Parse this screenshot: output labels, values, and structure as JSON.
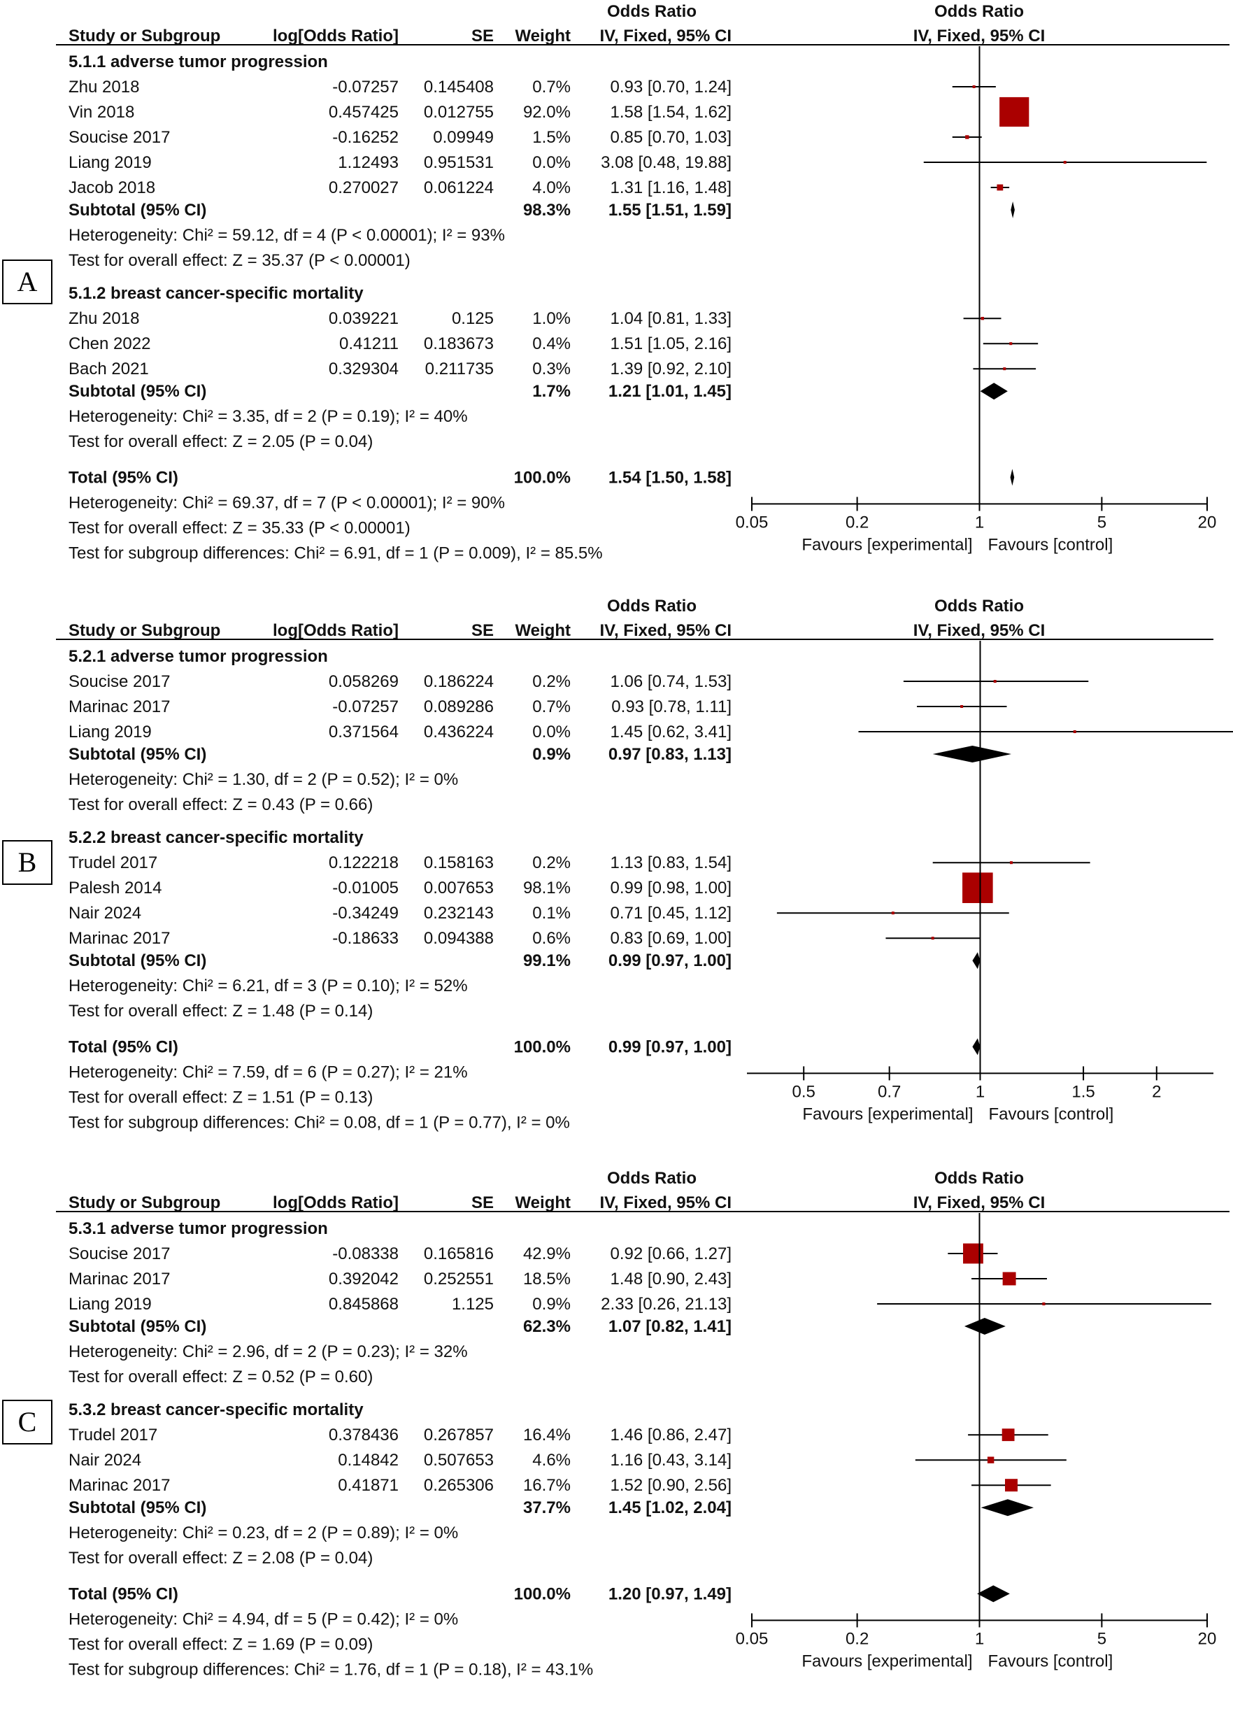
{
  "headers": {
    "odds_ratio": "Odds Ratio",
    "study": "Study or Subgroup",
    "logor": "log[Odds Ratio]",
    "se": "SE",
    "weight": "Weight",
    "method": "IV, Fixed, 95% CI"
  },
  "colors": {
    "square": "#aa0000",
    "diamond": "#000000",
    "line": "#000000"
  },
  "chart_data": [
    {
      "type": "forest",
      "panel": "A",
      "axis": {
        "scale": "log",
        "ticks": [
          "0.05",
          "0.2",
          "1",
          "5",
          "20"
        ],
        "tick_values": [
          0.05,
          0.2,
          1,
          5,
          20
        ],
        "xlim": [
          0.05,
          20
        ],
        "left_label": "Favours [experimental]",
        "right_label": "Favours [control]"
      },
      "subgroups": [
        {
          "title": "5.1.1 adverse tumor progression",
          "studies": [
            {
              "name": "Zhu 2018",
              "logor": "-0.07257",
              "se": "0.145408",
              "weight": "0.7%",
              "ci_text": "0.93 [0.70, 1.24]",
              "or": 0.93,
              "lo": 0.7,
              "hi": 1.24,
              "w": 0.7
            },
            {
              "name": "Vin 2018",
              "logor": "0.457425",
              "se": "0.012755",
              "weight": "92.0%",
              "ci_text": "1.58 [1.54, 1.62]",
              "or": 1.58,
              "lo": 1.54,
              "hi": 1.62,
              "w": 92.0
            },
            {
              "name": "Soucise 2017",
              "logor": "-0.16252",
              "se": "0.09949",
              "weight": "1.5%",
              "ci_text": "0.85 [0.70, 1.03]",
              "or": 0.85,
              "lo": 0.7,
              "hi": 1.03,
              "w": 1.5
            },
            {
              "name": "Liang 2019",
              "logor": "1.12493",
              "se": "0.951531",
              "weight": "0.0%",
              "ci_text": "3.08 [0.48, 19.88]",
              "or": 3.08,
              "lo": 0.48,
              "hi": 19.88,
              "w": 0.0
            },
            {
              "name": "Jacob 2018",
              "logor": "0.270027",
              "se": "0.061224",
              "weight": "4.0%",
              "ci_text": "1.31 [1.16, 1.48]",
              "or": 1.31,
              "lo": 1.16,
              "hi": 1.48,
              "w": 4.0
            }
          ],
          "subtotal": {
            "label": "Subtotal (95% CI)",
            "weight": "98.3%",
            "ci_text": "1.55 [1.51, 1.59]",
            "or": 1.55,
            "lo": 1.51,
            "hi": 1.59
          },
          "heterogeneity": "Heterogeneity: Chi² = 59.12, df = 4 (P < 0.00001); I² = 93%",
          "overall": "Test for overall effect: Z = 35.37 (P < 0.00001)"
        },
        {
          "title": "5.1.2 breast cancer-specific mortality",
          "studies": [
            {
              "name": "Zhu 2018",
              "logor": "0.039221",
              "se": "0.125",
              "weight": "1.0%",
              "ci_text": "1.04 [0.81, 1.33]",
              "or": 1.04,
              "lo": 0.81,
              "hi": 1.33,
              "w": 1.0
            },
            {
              "name": "Chen 2022",
              "logor": "0.41211",
              "se": "0.183673",
              "weight": "0.4%",
              "ci_text": "1.51 [1.05, 2.16]",
              "or": 1.51,
              "lo": 1.05,
              "hi": 2.16,
              "w": 0.4
            },
            {
              "name": "Bach 2021",
              "logor": "0.329304",
              "se": "0.211735",
              "weight": "0.3%",
              "ci_text": "1.39 [0.92, 2.10]",
              "or": 1.39,
              "lo": 0.92,
              "hi": 2.1,
              "w": 0.3
            }
          ],
          "subtotal": {
            "label": "Subtotal (95% CI)",
            "weight": "1.7%",
            "ci_text": "1.21 [1.01, 1.45]",
            "or": 1.21,
            "lo": 1.01,
            "hi": 1.45
          },
          "heterogeneity": "Heterogeneity: Chi² = 3.35, df = 2 (P = 0.19); I² = 40%",
          "overall": "Test for overall effect: Z = 2.05 (P = 0.04)"
        }
      ],
      "total": {
        "label": "Total (95% CI)",
        "weight": "100.0%",
        "ci_text": "1.54 [1.50, 1.58]",
        "or": 1.54,
        "lo": 1.5,
        "hi": 1.58
      },
      "total_heterogeneity": "Heterogeneity: Chi² = 69.37, df = 7 (P < 0.00001); I² = 90%",
      "total_overall": "Test for overall effect: Z = 35.33 (P < 0.00001)",
      "subgroup_diff": "Test for subgroup differences: Chi² = 6.91, df = 1 (P = 0.009), I² = 85.5%"
    },
    {
      "type": "forest",
      "panel": "B",
      "axis": {
        "scale": "log",
        "ticks": [
          "0.5",
          "0.7",
          "1",
          "1.5",
          "2"
        ],
        "tick_values": [
          0.5,
          0.7,
          1,
          1.5,
          2
        ],
        "xlim": [
          0.4,
          2.5
        ],
        "left_label": "Favours [experimental]",
        "right_label": "Favours [control]"
      },
      "subgroups": [
        {
          "title": "5.2.1 adverse tumor progression",
          "studies": [
            {
              "name": "Soucise 2017",
              "logor": "0.058269",
              "se": "0.186224",
              "weight": "0.2%",
              "ci_text": "1.06 [0.74, 1.53]",
              "or": 1.06,
              "lo": 0.74,
              "hi": 1.53,
              "w": 0.2
            },
            {
              "name": "Marinac 2017",
              "logor": "-0.07257",
              "se": "0.089286",
              "weight": "0.7%",
              "ci_text": "0.93 [0.78, 1.11]",
              "or": 0.93,
              "lo": 0.78,
              "hi": 1.11,
              "w": 0.7
            },
            {
              "name": "Liang 2019",
              "logor": "0.371564",
              "se": "0.436224",
              "weight": "0.0%",
              "ci_text": "1.45 [0.62, 3.41]",
              "or": 1.45,
              "lo": 0.62,
              "hi": 3.41,
              "w": 0.0
            }
          ],
          "subtotal": {
            "label": "Subtotal (95% CI)",
            "weight": "0.9%",
            "ci_text": "0.97 [0.83, 1.13]",
            "or": 0.97,
            "lo": 0.83,
            "hi": 1.13
          },
          "heterogeneity": "Heterogeneity: Chi² = 1.30, df = 2 (P = 0.52); I² = 0%",
          "overall": "Test for overall effect: Z = 0.43 (P = 0.66)"
        },
        {
          "title": "5.2.2 breast cancer-specific mortality",
          "studies": [
            {
              "name": "Trudel 2017",
              "logor": "0.122218",
              "se": "0.158163",
              "weight": "0.2%",
              "ci_text": "1.13 [0.83, 1.54]",
              "or": 1.13,
              "lo": 0.83,
              "hi": 1.54,
              "w": 0.2
            },
            {
              "name": "Palesh 2014",
              "logor": "-0.01005",
              "se": "0.007653",
              "weight": "98.1%",
              "ci_text": "0.99 [0.98, 1.00]",
              "or": 0.99,
              "lo": 0.98,
              "hi": 1.0,
              "w": 98.1
            },
            {
              "name": "Nair 2024",
              "logor": "-0.34249",
              "se": "0.232143",
              "weight": "0.1%",
              "ci_text": "0.71 [0.45, 1.12]",
              "or": 0.71,
              "lo": 0.45,
              "hi": 1.12,
              "w": 0.1
            },
            {
              "name": "Marinac 2017",
              "logor": "-0.18633",
              "se": "0.094388",
              "weight": "0.6%",
              "ci_text": "0.83 [0.69, 1.00]",
              "or": 0.83,
              "lo": 0.69,
              "hi": 1.0,
              "w": 0.6
            }
          ],
          "subtotal": {
            "label": "Subtotal (95% CI)",
            "weight": "99.1%",
            "ci_text": "0.99 [0.97, 1.00]",
            "or": 0.99,
            "lo": 0.97,
            "hi": 1.0
          },
          "heterogeneity": "Heterogeneity: Chi² = 6.21, df = 3 (P = 0.10); I² = 52%",
          "overall": "Test for overall effect: Z = 1.48 (P = 0.14)"
        }
      ],
      "total": {
        "label": "Total (95% CI)",
        "weight": "100.0%",
        "ci_text": "0.99 [0.97, 1.00]",
        "or": 0.99,
        "lo": 0.97,
        "hi": 1.0
      },
      "total_heterogeneity": "Heterogeneity: Chi² = 7.59, df = 6 (P = 0.27); I² = 21%",
      "total_overall": "Test for overall effect: Z = 1.51 (P = 0.13)",
      "subgroup_diff": "Test for subgroup differences: Chi² = 0.08, df = 1 (P = 0.77), I² = 0%"
    },
    {
      "type": "forest",
      "panel": "C",
      "axis": {
        "scale": "log",
        "ticks": [
          "0.05",
          "0.2",
          "1",
          "5",
          "20"
        ],
        "tick_values": [
          0.05,
          0.2,
          1,
          5,
          20
        ],
        "xlim": [
          0.05,
          20
        ],
        "left_label": "Favours [experimental]",
        "right_label": "Favours [control]"
      },
      "subgroups": [
        {
          "title": "5.3.1 adverse tumor progression",
          "studies": [
            {
              "name": "Soucise 2017",
              "logor": "-0.08338",
              "se": "0.165816",
              "weight": "42.9%",
              "ci_text": "0.92 [0.66, 1.27]",
              "or": 0.92,
              "lo": 0.66,
              "hi": 1.27,
              "w": 42.9
            },
            {
              "name": "Marinac 2017",
              "logor": "0.392042",
              "se": "0.252551",
              "weight": "18.5%",
              "ci_text": "1.48 [0.90, 2.43]",
              "or": 1.48,
              "lo": 0.9,
              "hi": 2.43,
              "w": 18.5
            },
            {
              "name": "Liang 2019",
              "logor": "0.845868",
              "se": "1.125",
              "weight": "0.9%",
              "ci_text": "2.33 [0.26, 21.13]",
              "or": 2.33,
              "lo": 0.26,
              "hi": 21.13,
              "w": 0.9
            }
          ],
          "subtotal": {
            "label": "Subtotal (95% CI)",
            "weight": "62.3%",
            "ci_text": "1.07 [0.82, 1.41]",
            "or": 1.07,
            "lo": 0.82,
            "hi": 1.41
          },
          "heterogeneity": "Heterogeneity: Chi² = 2.96, df = 2 (P = 0.23); I² = 32%",
          "overall": "Test for overall effect: Z = 0.52 (P = 0.60)"
        },
        {
          "title": "5.3.2 breast cancer-specific mortality",
          "studies": [
            {
              "name": "Trudel 2017",
              "logor": "0.378436",
              "se": "0.267857",
              "weight": "16.4%",
              "ci_text": "1.46 [0.86, 2.47]",
              "or": 1.46,
              "lo": 0.86,
              "hi": 2.47,
              "w": 16.4
            },
            {
              "name": "Nair 2024",
              "logor": "0.14842",
              "se": "0.507653",
              "weight": "4.6%",
              "ci_text": "1.16 [0.43, 3.14]",
              "or": 1.16,
              "lo": 0.43,
              "hi": 3.14,
              "w": 4.6
            },
            {
              "name": "Marinac 2017",
              "logor": "0.41871",
              "se": "0.265306",
              "weight": "16.7%",
              "ci_text": "1.52 [0.90, 2.56]",
              "or": 1.52,
              "lo": 0.9,
              "hi": 2.56,
              "w": 16.7
            }
          ],
          "subtotal": {
            "label": "Subtotal (95% CI)",
            "weight": "37.7%",
            "ci_text": "1.45 [1.02, 2.04]",
            "or": 1.45,
            "lo": 1.02,
            "hi": 2.04
          },
          "heterogeneity": "Heterogeneity: Chi² = 0.23, df = 2 (P = 0.89); I² = 0%",
          "overall": "Test for overall effect: Z = 2.08 (P = 0.04)"
        }
      ],
      "total": {
        "label": "Total (95% CI)",
        "weight": "100.0%",
        "ci_text": "1.20 [0.97, 1.49]",
        "or": 1.2,
        "lo": 0.97,
        "hi": 1.49
      },
      "total_heterogeneity": "Heterogeneity: Chi² = 4.94, df = 5 (P = 0.42); I² = 0%",
      "total_overall": "Test for overall effect: Z = 1.69 (P = 0.09)",
      "subgroup_diff": "Test for subgroup differences: Chi² = 1.76, df = 1 (P = 0.18), I² = 43.1%"
    }
  ]
}
